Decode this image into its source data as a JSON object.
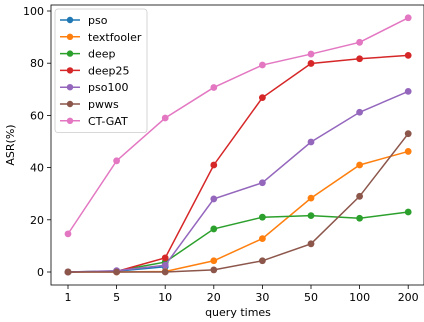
{
  "chart_data": {
    "type": "line",
    "title": "",
    "xlabel": "query times",
    "ylabel": "ASR(%)",
    "categories": [
      "1",
      "5",
      "10",
      "20",
      "30",
      "50",
      "100",
      "200"
    ],
    "ylim": [
      -5,
      102
    ],
    "yticks": [
      0,
      20,
      40,
      60,
      80,
      100
    ],
    "grid": false,
    "legend_position": "top-left",
    "series": [
      {
        "name": "pso",
        "color": "#1f77b4",
        "values": [
          0,
          0.3,
          2.0,
          null,
          null,
          null,
          null,
          null
        ]
      },
      {
        "name": "textfooler",
        "color": "#ff7f0e",
        "values": [
          0,
          0,
          0.2,
          4.3,
          12.8,
          28.3,
          41.0,
          46.2
        ]
      },
      {
        "name": "deep",
        "color": "#2ca02c",
        "values": [
          0,
          0.4,
          3.8,
          16.5,
          21.0,
          21.6,
          20.6,
          23.0
        ]
      },
      {
        "name": "deep25",
        "color": "#d62728",
        "values": [
          0,
          0.2,
          5.4,
          41.0,
          66.8,
          79.9,
          81.7,
          83.0
        ]
      },
      {
        "name": "pso100",
        "color": "#9467bd",
        "values": [
          0,
          0.5,
          2.6,
          28.0,
          34.2,
          49.8,
          61.2,
          69.2
        ]
      },
      {
        "name": "pwws",
        "color": "#8c564b",
        "values": [
          0,
          0,
          0,
          0.8,
          4.3,
          10.8,
          29.0,
          53.0
        ]
      },
      {
        "name": "CT-GAT",
        "color": "#e377c2",
        "values": [
          14.6,
          42.6,
          59.0,
          70.7,
          79.3,
          83.5,
          88.0,
          97.4
        ]
      }
    ]
  }
}
